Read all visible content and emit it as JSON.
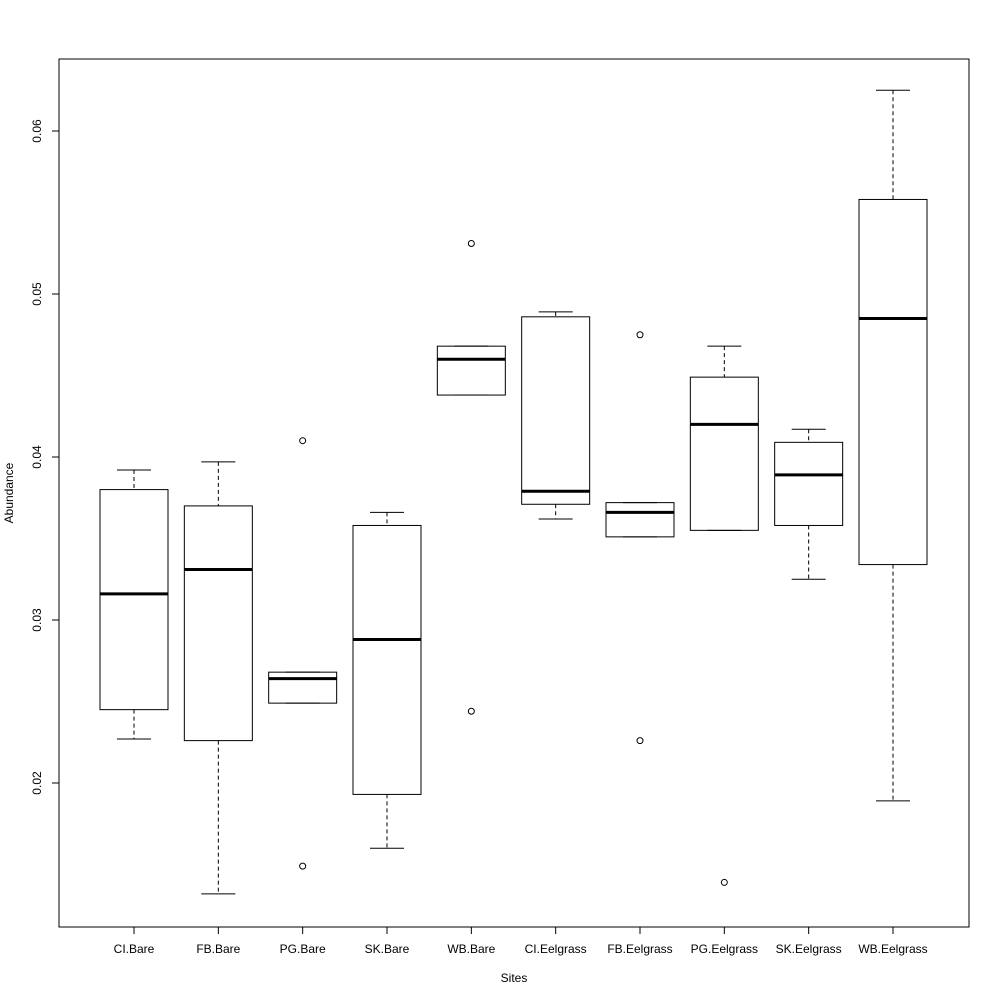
{
  "chart_data": {
    "type": "box",
    "title": "",
    "xlabel": "Sites",
    "ylabel": "Abundance",
    "ylim": [
      0.0115,
      0.0645
    ],
    "yticks": [
      0.02,
      0.03,
      0.04,
      0.05,
      0.06
    ],
    "ytick_labels": [
      "0.02",
      "0.03",
      "0.04",
      "0.05",
      "0.06"
    ],
    "grid": false,
    "legend": "none",
    "categories": [
      "CI.Bare",
      "FB.Bare",
      "PG.Bare",
      "SK.Bare",
      "WB.Bare",
      "CI.Eelgrass",
      "FB.Eelgrass",
      "PG.Eelgrass",
      "SK.Eelgrass",
      "WB.Eelgrass"
    ],
    "boxes": [
      {
        "category": "CI.Bare",
        "whisker_low": 0.0227,
        "q1": 0.0245,
        "median": 0.0316,
        "q3": 0.038,
        "whisker_high": 0.0392,
        "outliers": []
      },
      {
        "category": "FB.Bare",
        "whisker_low": 0.0132,
        "q1": 0.0226,
        "median": 0.0331,
        "q3": 0.037,
        "whisker_high": 0.0397,
        "outliers": []
      },
      {
        "category": "PG.Bare",
        "whisker_low": 0.0249,
        "q1": 0.0249,
        "median": 0.0264,
        "q3": 0.0268,
        "whisker_high": 0.0268,
        "outliers": [
          0.041,
          0.0149
        ]
      },
      {
        "category": "SK.Bare",
        "whisker_low": 0.016,
        "q1": 0.0193,
        "median": 0.0288,
        "q3": 0.0358,
        "whisker_high": 0.0366,
        "outliers": []
      },
      {
        "category": "WB.Bare",
        "whisker_low": 0.0438,
        "q1": 0.0438,
        "median": 0.046,
        "q3": 0.0468,
        "whisker_high": 0.0468,
        "outliers": [
          0.0531,
          0.0244
        ]
      },
      {
        "category": "CI.Eelgrass",
        "whisker_low": 0.0362,
        "q1": 0.0371,
        "median": 0.0379,
        "q3": 0.0486,
        "whisker_high": 0.0489,
        "outliers": []
      },
      {
        "category": "FB.Eelgrass",
        "whisker_low": 0.0351,
        "q1": 0.0351,
        "median": 0.0366,
        "q3": 0.0372,
        "whisker_high": 0.0372,
        "outliers": [
          0.0475,
          0.0226
        ]
      },
      {
        "category": "PG.Eelgrass",
        "whisker_low": 0.0355,
        "q1": 0.0355,
        "median": 0.042,
        "q3": 0.0449,
        "whisker_high": 0.0468,
        "outliers": [
          0.0139
        ]
      },
      {
        "category": "SK.Eelgrass",
        "whisker_low": 0.0325,
        "q1": 0.0358,
        "median": 0.0389,
        "q3": 0.0409,
        "whisker_high": 0.0417,
        "outliers": []
      },
      {
        "category": "WB.Eelgrass",
        "whisker_low": 0.0189,
        "q1": 0.0334,
        "median": 0.0485,
        "q3": 0.0558,
        "whisker_high": 0.0625,
        "outliers": []
      }
    ]
  }
}
